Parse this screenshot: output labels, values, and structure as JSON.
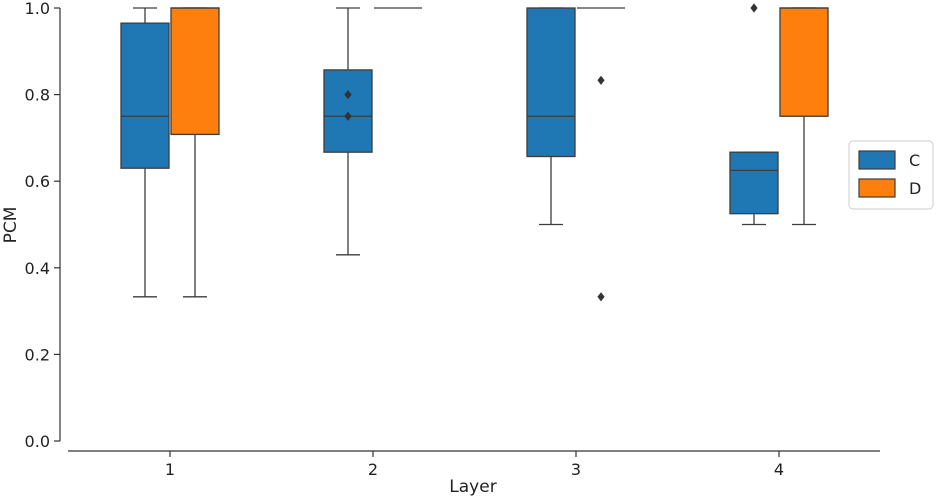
{
  "chart_data": {
    "type": "box",
    "xlabel": "Layer",
    "ylabel": "PCM",
    "ylim": [
      0.0,
      1.0
    ],
    "y_ticks": [
      "0.0",
      "0.2",
      "0.4",
      "0.6",
      "0.8",
      "1.0"
    ],
    "categories": [
      "1",
      "2",
      "3",
      "4"
    ],
    "legend": {
      "placement": "right",
      "entries": [
        "C",
        "D"
      ]
    },
    "grid": false,
    "series": [
      {
        "name": "C",
        "color": "#1f77b4",
        "boxes": [
          {
            "category": "1",
            "whisker_low": 0.333,
            "q1": 0.63,
            "median": 0.75,
            "q3": 0.965,
            "whisker_high": 1.0,
            "outliers": []
          },
          {
            "category": "2",
            "whisker_low": 0.43,
            "q1": 0.667,
            "median": 0.75,
            "q3": 0.857,
            "whisker_high": 1.0,
            "outliers": [
              0.8,
              0.75
            ]
          },
          {
            "category": "3",
            "whisker_low": 0.5,
            "q1": 0.657,
            "median": 0.75,
            "q3": 1.0,
            "whisker_high": 1.0,
            "outliers": []
          },
          {
            "category": "4",
            "whisker_low": 0.5,
            "q1": 0.525,
            "median": 0.625,
            "q3": 0.667,
            "whisker_high": 0.667,
            "outliers": [
              1.0
            ]
          }
        ]
      },
      {
        "name": "D",
        "color": "#ff7f0e",
        "boxes": [
          {
            "category": "1",
            "whisker_low": 0.333,
            "q1": 0.708,
            "median": 1.0,
            "q3": 1.0,
            "whisker_high": 1.0,
            "outliers": []
          },
          {
            "category": "2",
            "whisker_low": 1.0,
            "q1": 1.0,
            "median": 1.0,
            "q3": 1.0,
            "whisker_high": 1.0,
            "outliers": []
          },
          {
            "category": "3",
            "whisker_low": 1.0,
            "q1": 1.0,
            "median": 1.0,
            "q3": 1.0,
            "whisker_high": 1.0,
            "outliers": [
              0.833,
              0.333
            ]
          },
          {
            "category": "4",
            "whisker_low": 0.5,
            "q1": 0.75,
            "median": 1.0,
            "q3": 1.0,
            "whisker_high": 1.0,
            "outliers": []
          }
        ]
      }
    ]
  }
}
